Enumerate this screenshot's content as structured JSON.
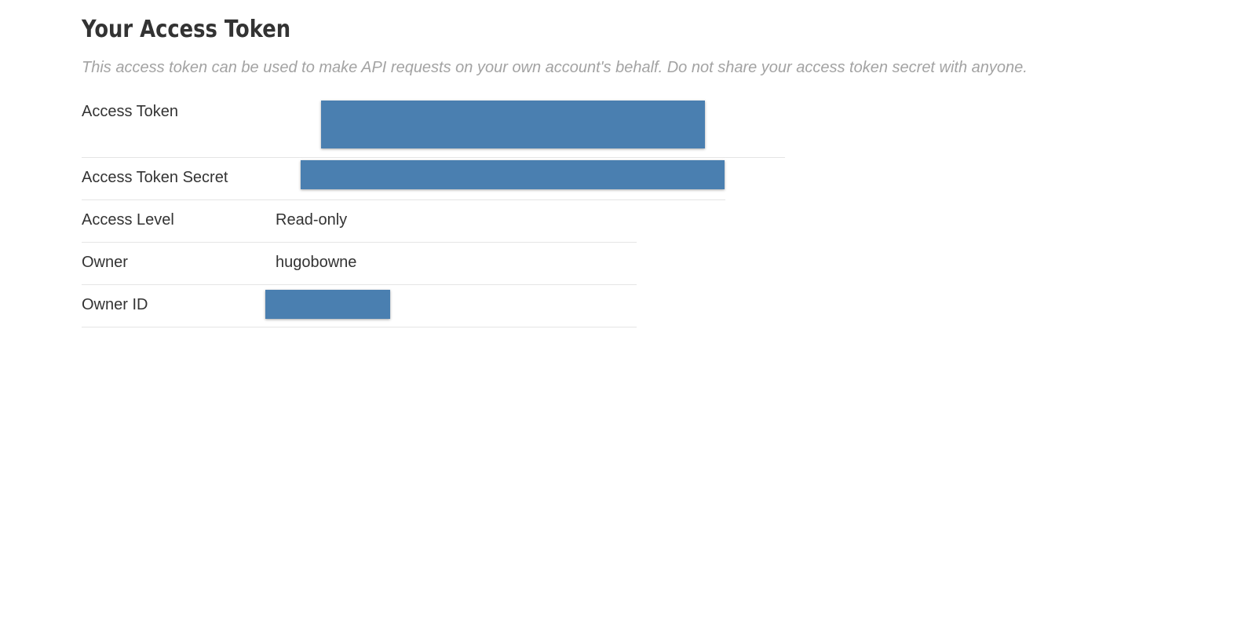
{
  "header": {
    "title": "Your Access Token",
    "subtitle": "This access token can be used to make API requests on your own account's behalf. Do not share your access token secret with anyone."
  },
  "token_details": {
    "rows": [
      {
        "label": "Access Token",
        "value": "",
        "redacted": true
      },
      {
        "label": "Access Token Secret",
        "value": "",
        "redacted": true
      },
      {
        "label": "Access Level",
        "value": "Read-only",
        "redacted": false
      },
      {
        "label": "Owner",
        "value": "hugobowne",
        "redacted": false
      },
      {
        "label": "Owner ID",
        "value": "",
        "redacted": true
      }
    ]
  },
  "colors": {
    "redaction": "#4a7fb0",
    "title": "#333333",
    "subtitle": "#a3a3a3",
    "divider": "#e5e5e5"
  }
}
